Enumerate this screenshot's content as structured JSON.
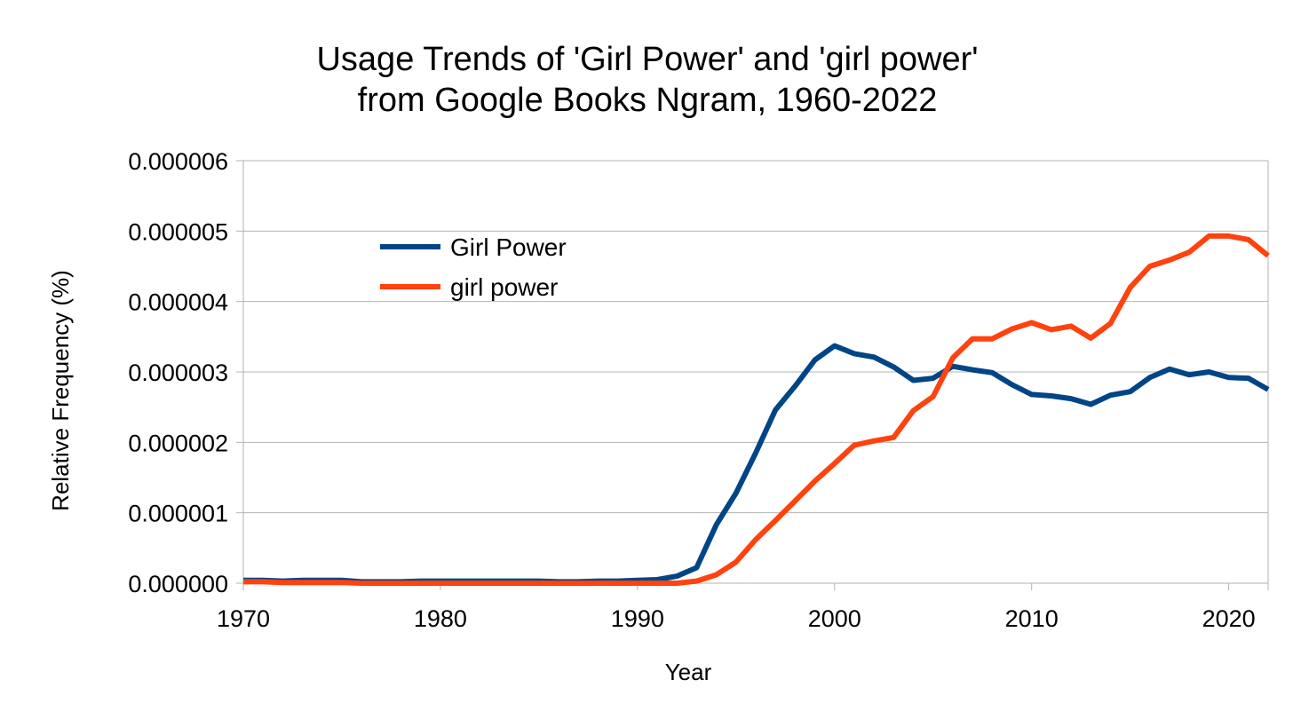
{
  "chart_data": {
    "type": "line",
    "title_lines": [
      "Usage Trends of 'Girl Power' and 'girl power'",
      "from Google Books Ngram, 1960-2022"
    ],
    "xlabel": "Year",
    "ylabel": "Relative Frequency (%)",
    "xlim": [
      1970,
      2022
    ],
    "ylim": [
      0,
      6e-06
    ],
    "x_ticks": [
      1970,
      1980,
      1990,
      2000,
      2010,
      2020
    ],
    "y_ticks": [
      "0.000000",
      "0.000001",
      "0.000002",
      "0.000003",
      "0.000004",
      "0.000005",
      "0.000006"
    ],
    "grid": true,
    "legend_position": "upper-left-inside",
    "x": [
      1970,
      1971,
      1972,
      1973,
      1974,
      1975,
      1976,
      1977,
      1978,
      1979,
      1980,
      1981,
      1982,
      1983,
      1984,
      1985,
      1986,
      1987,
      1988,
      1989,
      1990,
      1991,
      1992,
      1993,
      1994,
      1995,
      1996,
      1997,
      1998,
      1999,
      2000,
      2001,
      2002,
      2003,
      2004,
      2005,
      2006,
      2007,
      2008,
      2009,
      2010,
      2011,
      2012,
      2013,
      2014,
      2015,
      2016,
      2017,
      2018,
      2019,
      2020,
      2021,
      2022
    ],
    "series": [
      {
        "name": "Girl Power",
        "color": "#004586",
        "values": [
          4e-08,
          4e-08,
          3e-08,
          4e-08,
          4e-08,
          4e-08,
          2e-08,
          2e-08,
          2e-08,
          3e-08,
          3e-08,
          3e-08,
          3e-08,
          3e-08,
          3e-08,
          3e-08,
          2e-08,
          2e-08,
          3e-08,
          3e-08,
          4e-08,
          5e-08,
          1e-07,
          2.2e-07,
          8.3e-07,
          1.28e-06,
          1.85e-06,
          2.46e-06,
          2.8e-06,
          3.17e-06,
          3.37e-06,
          3.26e-06,
          3.21e-06,
          3.07e-06,
          2.88e-06,
          2.91e-06,
          3.08e-06,
          3.03e-06,
          2.99e-06,
          2.82e-06,
          2.68e-06,
          2.66e-06,
          2.62e-06,
          2.54e-06,
          2.67e-06,
          2.72e-06,
          2.92e-06,
          3.04e-06,
          2.96e-06,
          3e-06,
          2.92e-06,
          2.91e-06,
          2.75e-06
        ]
      },
      {
        "name": "girl power",
        "color": "#ff420e",
        "values": [
          2e-08,
          2e-08,
          1e-08,
          1e-08,
          1e-08,
          1e-08,
          0.0,
          0.0,
          0.0,
          0.0,
          0.0,
          0.0,
          0.0,
          0.0,
          0.0,
          0.0,
          0.0,
          0.0,
          0.0,
          0.0,
          0.0,
          0.0,
          0.0,
          3e-08,
          1.2e-07,
          3e-07,
          6.2e-07,
          8.9e-07,
          1.17e-06,
          1.45e-06,
          1.7e-06,
          1.96e-06,
          2.02e-06,
          2.07e-06,
          2.45e-06,
          2.65e-06,
          3.2e-06,
          3.47e-06,
          3.47e-06,
          3.61e-06,
          3.7e-06,
          3.6e-06,
          3.65e-06,
          3.48e-06,
          3.69e-06,
          4.2e-06,
          4.5e-06,
          4.59e-06,
          4.7e-06,
          4.93e-06,
          4.93e-06,
          4.88e-06,
          4.65e-06
        ]
      }
    ]
  }
}
